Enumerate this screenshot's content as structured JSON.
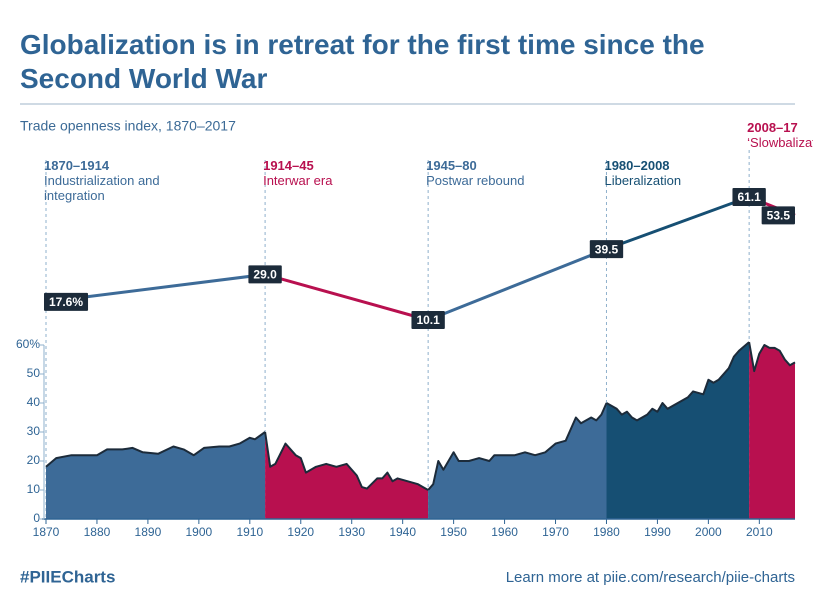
{
  "chart_data": {
    "type": "area",
    "title": "Globalization is in retreat for the first time since the Second World War",
    "subtitle": "Trade openness index, 1870–2017",
    "xlim": [
      1870,
      2017
    ],
    "xticks": [
      1870,
      1880,
      1890,
      1900,
      1910,
      1920,
      1930,
      1940,
      1950,
      1960,
      1970,
      1980,
      1990,
      2000,
      2010
    ],
    "ylim": [
      0,
      60
    ],
    "yticks": [
      0,
      10,
      20,
      30,
      40,
      50,
      {
        "value": 60,
        "label": "60%"
      }
    ],
    "series": [
      {
        "period": "1870–1914",
        "name": "Industrialization and integration",
        "color": "#3d6b98",
        "x": [
          1870,
          1872,
          1875,
          1880,
          1882,
          1885,
          1887,
          1889,
          1892,
          1895,
          1897,
          1899,
          1901,
          1904,
          1906,
          1908,
          1910,
          1911,
          1913
        ],
        "values": [
          18,
          21,
          22,
          22,
          24,
          24,
          24.5,
          23,
          22.5,
          25,
          24,
          22,
          24.5,
          25,
          25,
          26,
          28,
          27.5,
          30
        ]
      },
      {
        "period": "1914–45",
        "name": "Interwar era",
        "color": "#b8104f",
        "x": [
          1913,
          1914,
          1915,
          1917,
          1919,
          1920,
          1921,
          1923,
          1925,
          1927,
          1929,
          1931,
          1932,
          1933,
          1935,
          1936,
          1937,
          1938,
          1939,
          1941,
          1943,
          1944,
          1945
        ],
        "values": [
          30,
          18,
          19,
          26,
          22,
          21,
          16,
          18,
          19,
          18,
          19,
          15,
          11,
          10.5,
          14,
          14,
          16,
          13,
          14,
          13,
          12,
          11,
          10
        ]
      },
      {
        "period": "1945–80",
        "name": "Postwar rebound",
        "color": "#3d6b98",
        "x": [
          1945,
          1946,
          1947,
          1948,
          1950,
          1951,
          1953,
          1955,
          1957,
          1958,
          1960,
          1962,
          1964,
          1966,
          1968,
          1970,
          1972,
          1974,
          1975,
          1977,
          1978,
          1979,
          1980
        ],
        "values": [
          10,
          12,
          20,
          17,
          23,
          20,
          20,
          21,
          20,
          22,
          22,
          22,
          23,
          22,
          23,
          26,
          27,
          35,
          33,
          35,
          34,
          36,
          40
        ]
      },
      {
        "period": "1980–2008",
        "name": "Liberalization",
        "color": "#164f73",
        "x": [
          1980,
          1982,
          1983,
          1984,
          1985,
          1986,
          1988,
          1989,
          1990,
          1991,
          1992,
          1994,
          1996,
          1997,
          1999,
          2000,
          2001,
          2002,
          2004,
          2005,
          2006,
          2008
        ],
        "values": [
          40,
          38,
          36,
          37,
          35,
          34,
          36,
          38,
          37,
          40,
          38,
          40,
          42,
          44,
          43,
          48,
          47,
          48,
          52,
          56,
          58,
          61
        ]
      },
      {
        "period": "2008–17",
        "name": "‘Slowbalization’",
        "color": "#b8104f",
        "x": [
          2008,
          2009,
          2010,
          2011,
          2012,
          2013,
          2014,
          2015,
          2016,
          2017
        ],
        "values": [
          61,
          51,
          57,
          60,
          59,
          59,
          58,
          55,
          53,
          54
        ]
      }
    ],
    "summary": {
      "x": [
        1870,
        1913,
        1945,
        1980,
        2008,
        2017
      ],
      "values": [
        17.6,
        29.0,
        10.1,
        39.5,
        61.1,
        53.5
      ],
      "value_labels": [
        "17.6%",
        "29.0",
        "10.1",
        "39.5",
        "61.1",
        "53.5"
      ]
    }
  },
  "footer": {
    "hashtag": "#PIIECharts",
    "link": "Learn more at piie.com/research/piie-charts"
  }
}
